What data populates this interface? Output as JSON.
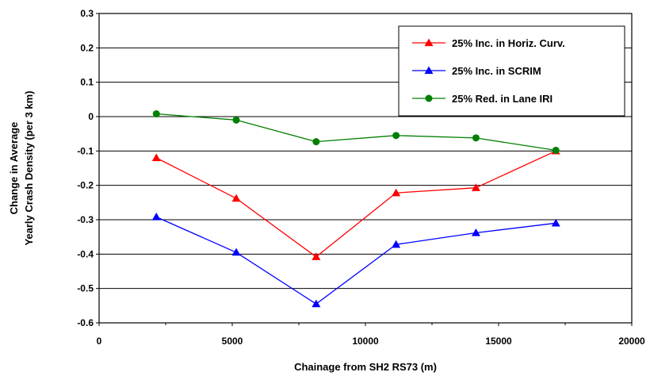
{
  "chart_data": {
    "type": "line",
    "title": "",
    "xlabel": "Chainage from SH2 RS73 (m)",
    "ylabel_lines": [
      "Change in Average",
      "Yearly Crash Density (per 3 km)"
    ],
    "xlim": [
      0,
      20000
    ],
    "ylim": [
      -0.6,
      0.3
    ],
    "x_ticks": [
      "0",
      "5000",
      "10000",
      "15000",
      "20000"
    ],
    "y_ticks": [
      "0.3",
      "0.2",
      "0.1",
      "0",
      "-0.1",
      "-0.2",
      "-0.3",
      "-0.4",
      "-0.5",
      "-0.6"
    ],
    "grid": "horizontal",
    "legend_position": "top-right",
    "x": [
      2150,
      5150,
      8150,
      11150,
      14150,
      17150
    ],
    "series": [
      {
        "name": "25% Inc. in Horiz. Curv.",
        "color": "#ff0000",
        "marker": "triangle",
        "values": [
          -0.12,
          -0.238,
          -0.408,
          -0.222,
          -0.207,
          -0.1
        ]
      },
      {
        "name": "25% Inc. in SCRIM",
        "color": "#0000ff",
        "marker": "triangle",
        "values": [
          -0.292,
          -0.395,
          -0.545,
          -0.372,
          -0.338,
          -0.31
        ]
      },
      {
        "name": "25% Red. in Lane IRI",
        "color": "#008000",
        "marker": "circle",
        "values": [
          0.008,
          -0.01,
          -0.073,
          -0.055,
          -0.062,
          -0.098
        ]
      }
    ]
  }
}
